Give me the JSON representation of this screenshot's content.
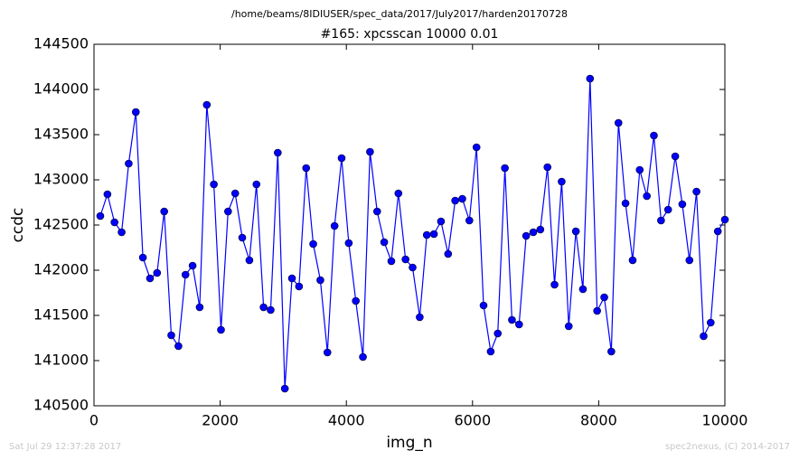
{
  "chart_data": {
    "type": "line",
    "suptitle": "/home/beams/8IDIUSER/spec_data/2017/July2017/harden20170728",
    "title": "#165: xpcsscan 10000 0.01",
    "x_label": "img_n",
    "y_label": "ccdc",
    "footer_left": "Sat Jul 29 12:37:28 2017",
    "footer_right": "spec2nexus, (C) 2014-2017",
    "x": [
      100,
      213,
      325,
      438,
      550,
      663,
      775,
      888,
      1000,
      1113,
      1225,
      1338,
      1450,
      1563,
      1675,
      1788,
      1900,
      2013,
      2125,
      2238,
      2350,
      2463,
      2575,
      2688,
      2800,
      2913,
      3025,
      3138,
      3250,
      3363,
      3475,
      3588,
      3700,
      3813,
      3925,
      4038,
      4150,
      4263,
      4375,
      4488,
      4600,
      4713,
      4825,
      4938,
      5050,
      5163,
      5275,
      5388,
      5500,
      5613,
      5725,
      5838,
      5950,
      6063,
      6175,
      6288,
      6400,
      6513,
      6625,
      6738,
      6850,
      6963,
      7075,
      7188,
      7300,
      7413,
      7525,
      7638,
      7750,
      7863,
      7975,
      8088,
      8200,
      8313,
      8425,
      8538,
      8650,
      8763,
      8875,
      8988,
      9100,
      9213,
      9325,
      9438,
      9550,
      9663,
      9775,
      9888,
      10000
    ],
    "series": [
      {
        "color": "#0000ff",
        "values": [
          142600,
          142840,
          142530,
          142420,
          143180,
          143750,
          142140,
          141910,
          141970,
          142650,
          141280,
          141160,
          141950,
          142050,
          141590,
          143830,
          142950,
          141340,
          142650,
          142850,
          142360,
          142110,
          142950,
          141590,
          141560,
          143300,
          140690,
          141910,
          141820,
          143130,
          142290,
          141890,
          141090,
          142490,
          143240,
          142300,
          141660,
          141040,
          143310,
          142650,
          142310,
          142100,
          142850,
          142120,
          142030,
          141480,
          142390,
          142400,
          142540,
          142180,
          142770,
          142790,
          142550,
          143360,
          141610,
          141100,
          141300,
          143130,
          141450,
          141400,
          142380,
          142420,
          142450,
          143140,
          141840,
          142980,
          141380,
          142430,
          141790,
          144120,
          141550,
          141700,
          141100,
          143630,
          142740,
          142110,
          143110,
          142820,
          143490,
          142550,
          142670,
          143260,
          142730,
          142110,
          142870,
          141270,
          141420,
          142430,
          142560
        ]
      }
    ],
    "xlim": [
      0,
      10000
    ],
    "xticks": [
      0,
      2000,
      4000,
      6000,
      8000,
      10000
    ],
    "ylim": [
      140500,
      144500
    ],
    "yticks": [
      140500,
      141000,
      141500,
      142000,
      142500,
      143000,
      143500,
      144000,
      144500
    ],
    "marker": "circle"
  }
}
